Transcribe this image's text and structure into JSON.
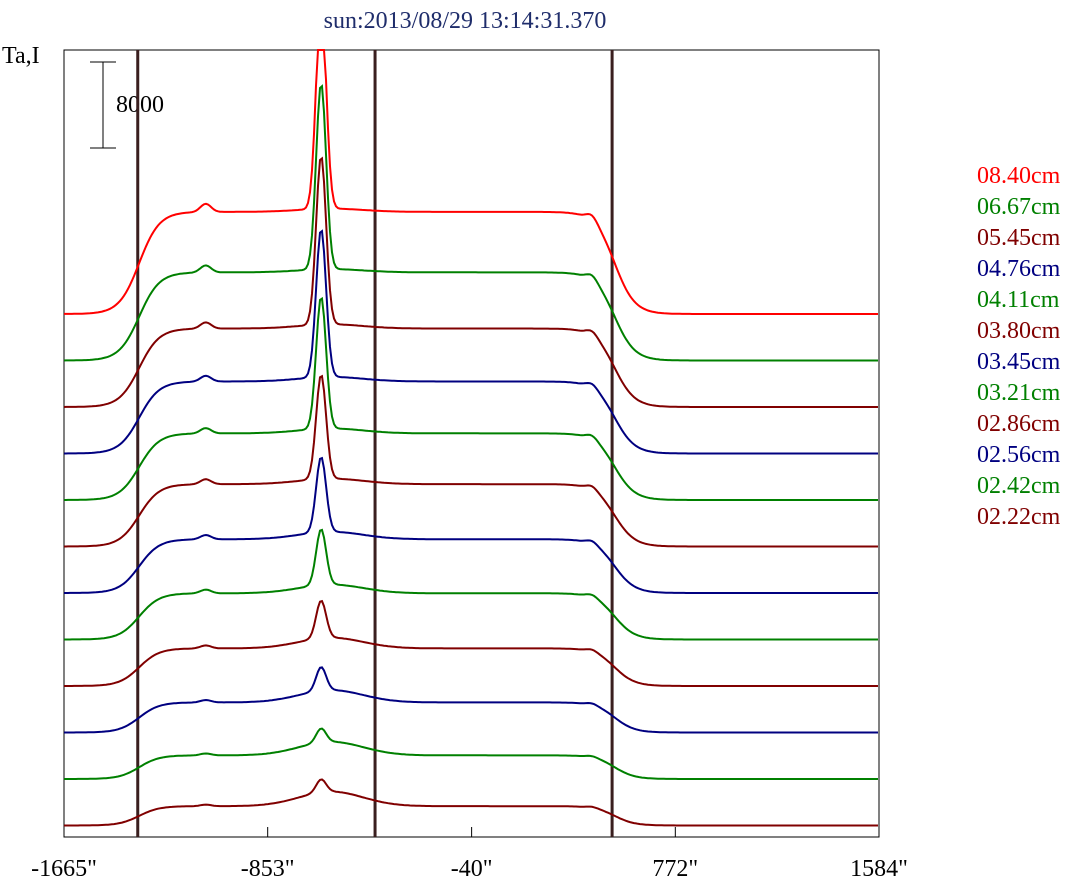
{
  "chart_data": {
    "type": "line",
    "title": "sun:2013/08/29 13:14:31.370",
    "ylabel": "Ta,I",
    "scale_bar_label": "8000",
    "scale_bar_value": 8000,
    "x_tick_labels": [
      "-1665\"",
      "-853\"",
      "-40\"",
      "772\"",
      "1584\""
    ],
    "x_ticks": [
      -1665,
      -853,
      -40,
      772,
      1584
    ],
    "xlim": [
      -1665,
      1584
    ],
    "vertical_lines": [
      -1371,
      -425,
      520
    ],
    "legend_position": "right",
    "series": [
      {
        "name": "08.40cm",
        "color": "#ff0000",
        "peak": 29000,
        "limb": 9500,
        "plateau": 10500
      },
      {
        "name": "06.67cm",
        "color": "#008000",
        "peak": 25500,
        "limb": 8200,
        "plateau": 9200
      },
      {
        "name": "05.45cm",
        "color": "#800000",
        "peak": 23000,
        "limb": 7300,
        "plateau": 8600
      },
      {
        "name": "04.76cm",
        "color": "#000080",
        "peak": 20500,
        "limb": 6700,
        "plateau": 8100
      },
      {
        "name": "04.11cm",
        "color": "#008000",
        "peak": 18500,
        "limb": 6200,
        "plateau": 7700
      },
      {
        "name": "03.80cm",
        "color": "#800000",
        "peak": 15500,
        "limb": 5800,
        "plateau": 7500
      },
      {
        "name": "03.45cm",
        "color": "#000080",
        "peak": 12000,
        "limb": 5000,
        "plateau": 7300
      },
      {
        "name": "03.21cm",
        "color": "#008000",
        "peak": 9500,
        "limb": 4300,
        "plateau": 7000
      },
      {
        "name": "02.86cm",
        "color": "#800000",
        "peak": 7000,
        "limb": 3500,
        "plateau": 6800
      },
      {
        "name": "02.56cm",
        "color": "#000080",
        "peak": 5000,
        "limb": 2800,
        "plateau": 6600
      },
      {
        "name": "02.42cm",
        "color": "#008000",
        "peak": 3500,
        "limb": 2200,
        "plateau": 6400
      },
      {
        "name": "02.22cm",
        "color": "#800000",
        "peak": 3000,
        "limb": 1800,
        "plateau": 6300
      }
    ]
  }
}
